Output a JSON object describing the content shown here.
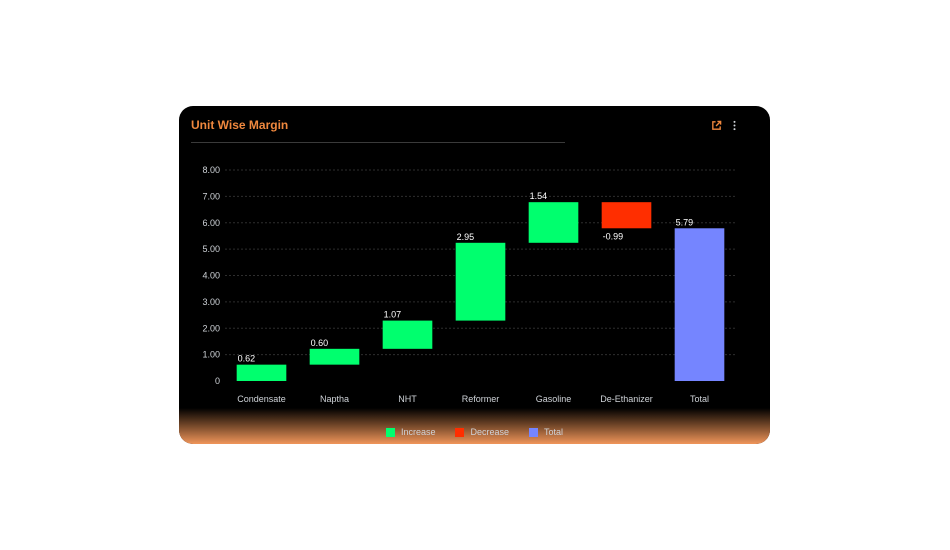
{
  "card": {
    "title": "Unit Wise Margin",
    "title_color": "#f0883e",
    "background": "#000000"
  },
  "header_icons": [
    {
      "name": "external-link-icon",
      "color": "#f0883e"
    },
    {
      "name": "more-vertical-icon",
      "color": "#cfd3d8"
    }
  ],
  "legend": [
    {
      "label": "Increase",
      "color": "#00ff6e"
    },
    {
      "label": "Decrease",
      "color": "#ff2e00"
    },
    {
      "label": "Total",
      "color": "#7585ff"
    }
  ],
  "chart_data": {
    "type": "bar",
    "subtype": "waterfall",
    "categories": [
      "Condensate",
      "Naptha",
      "NHT",
      "Reformer",
      "Gasoline",
      "De-Ethanizer",
      "Total"
    ],
    "values": [
      0.62,
      0.6,
      1.07,
      2.95,
      1.54,
      -0.99,
      5.79
    ],
    "value_labels": [
      "0.62",
      "0.60",
      "1.07",
      "2.95",
      "1.54",
      "-0.99",
      "5.79"
    ],
    "kinds": [
      "increase",
      "increase",
      "increase",
      "increase",
      "increase",
      "decrease",
      "total"
    ],
    "y_ticks": [
      "0",
      "1.00",
      "2.00",
      "3.00",
      "4.00",
      "5.00",
      "6.00",
      "7.00",
      "8.00"
    ],
    "ylim": [
      0,
      8
    ],
    "grid": true,
    "legend_position": "bottom",
    "colors": {
      "increase": "#00ff6e",
      "decrease": "#ff2e00",
      "total": "#7585ff"
    }
  }
}
